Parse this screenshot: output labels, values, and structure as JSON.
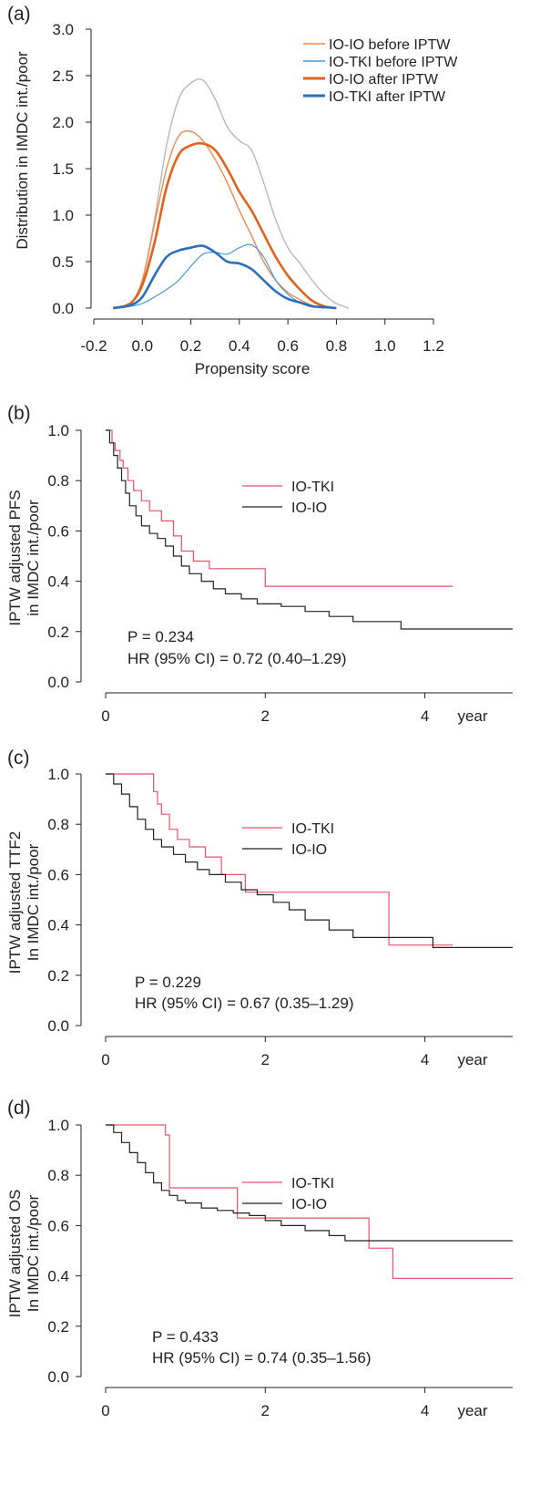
{
  "chart_data": [
    {
      "panel_label": "(a)",
      "type": "line",
      "xlabel": "Propensity score",
      "ylabel": "Distribution in IMDC int./poor",
      "xlim": [
        -0.2,
        1.2
      ],
      "ylim": [
        0.0,
        3.0
      ],
      "x_ticks": [
        "-0.2",
        "0.0",
        "0.2",
        "0.4",
        "0.6",
        "0.8",
        "1.0",
        "1.2"
      ],
      "y_ticks": [
        "0.0",
        "0.5",
        "1.0",
        "1.5",
        "2.0",
        "2.5",
        "3.0"
      ],
      "legend_position": "top-right",
      "colors": {
        "total": "#b8b8b8",
        "io_io_before": "#f08a4b",
        "io_tki_before": "#4a9ad6",
        "io_io_after": "#e3621b",
        "io_tki_after": "#2a6fbd"
      },
      "series": [
        {
          "key": "total",
          "legend": "",
          "x": [
            -0.12,
            -0.05,
            0.0,
            0.05,
            0.1,
            0.15,
            0.2,
            0.25,
            0.3,
            0.35,
            0.4,
            0.45,
            0.5,
            0.55,
            0.6,
            0.65,
            0.7,
            0.75,
            0.8,
            0.85
          ],
          "y": [
            0.0,
            0.05,
            0.3,
            0.95,
            1.75,
            2.25,
            2.42,
            2.45,
            2.25,
            1.95,
            1.8,
            1.7,
            1.35,
            0.95,
            0.65,
            0.48,
            0.3,
            0.15,
            0.05,
            0.0
          ]
        },
        {
          "key": "io_io_before",
          "legend": "IO-IO before IPTW",
          "x": [
            -0.12,
            -0.05,
            0.0,
            0.05,
            0.1,
            0.15,
            0.2,
            0.25,
            0.3,
            0.35,
            0.4,
            0.45,
            0.5,
            0.55,
            0.6,
            0.65,
            0.7,
            0.75
          ],
          "y": [
            0.0,
            0.05,
            0.3,
            0.9,
            1.5,
            1.85,
            1.9,
            1.8,
            1.6,
            1.35,
            1.05,
            0.78,
            0.5,
            0.3,
            0.17,
            0.09,
            0.03,
            0.0
          ]
        },
        {
          "key": "io_tki_before",
          "legend": "IO-TKI before IPTW",
          "x": [
            -0.12,
            -0.05,
            0.0,
            0.05,
            0.1,
            0.15,
            0.2,
            0.25,
            0.3,
            0.35,
            0.4,
            0.45,
            0.5,
            0.55,
            0.6,
            0.65,
            0.7,
            0.75
          ],
          "y": [
            0.0,
            0.02,
            0.05,
            0.12,
            0.2,
            0.3,
            0.45,
            0.58,
            0.6,
            0.58,
            0.65,
            0.68,
            0.55,
            0.3,
            0.15,
            0.06,
            0.02,
            0.0
          ]
        },
        {
          "key": "io_io_after",
          "legend": "IO-IO after IPTW",
          "x": [
            -0.12,
            -0.05,
            0.0,
            0.05,
            0.1,
            0.15,
            0.2,
            0.25,
            0.3,
            0.35,
            0.4,
            0.45,
            0.5,
            0.55,
            0.6,
            0.65,
            0.7,
            0.75,
            0.8
          ],
          "y": [
            0.0,
            0.05,
            0.25,
            0.7,
            1.3,
            1.65,
            1.75,
            1.77,
            1.7,
            1.5,
            1.25,
            1.05,
            0.8,
            0.55,
            0.35,
            0.2,
            0.08,
            0.02,
            0.0
          ]
        },
        {
          "key": "io_tki_after",
          "legend": "IO-TKI after IPTW",
          "x": [
            -0.12,
            -0.05,
            0.0,
            0.05,
            0.1,
            0.15,
            0.2,
            0.25,
            0.3,
            0.35,
            0.4,
            0.45,
            0.5,
            0.55,
            0.6,
            0.65,
            0.7,
            0.75,
            0.8
          ],
          "y": [
            0.0,
            0.03,
            0.12,
            0.35,
            0.55,
            0.62,
            0.65,
            0.67,
            0.6,
            0.5,
            0.48,
            0.42,
            0.3,
            0.18,
            0.1,
            0.06,
            0.02,
            0.01,
            0.0
          ]
        }
      ]
    },
    {
      "panel_label": "(b)",
      "type": "line",
      "ylabel_line1": "IPTW adjusted PFS",
      "ylabel_line2": "in IMDC int./poor",
      "x_ticks": [
        "0",
        "2",
        "4"
      ],
      "x_unit": "year",
      "xlim": [
        0,
        5.1
      ],
      "ylim": [
        0.0,
        1.0
      ],
      "y_ticks": [
        "0.0",
        "0.2",
        "0.4",
        "0.6",
        "0.8",
        "1.0"
      ],
      "legend": [
        "IO-TKI",
        "IO-IO"
      ],
      "p_text": "P = 0.234",
      "hr_text": "HR (95% CI) = 0.72 (0.40–1.29)",
      "colors": {
        "io_tki": "#e8546a",
        "io_io": "#222222"
      },
      "series": [
        {
          "name": "IO-TKI",
          "x": [
            0,
            0.08,
            0.12,
            0.18,
            0.22,
            0.28,
            0.35,
            0.45,
            0.55,
            0.7,
            0.85,
            0.95,
            1.1,
            1.3,
            2.0,
            4.35
          ],
          "y": [
            1.0,
            0.95,
            0.92,
            0.88,
            0.85,
            0.8,
            0.76,
            0.72,
            0.68,
            0.64,
            0.58,
            0.52,
            0.48,
            0.45,
            0.38,
            0.38
          ]
        },
        {
          "name": "IO-IO",
          "x": [
            0,
            0.05,
            0.1,
            0.15,
            0.2,
            0.25,
            0.3,
            0.38,
            0.45,
            0.55,
            0.65,
            0.75,
            0.85,
            0.95,
            1.05,
            1.2,
            1.35,
            1.5,
            1.7,
            1.9,
            2.2,
            2.5,
            2.8,
            3.1,
            3.7,
            5.1
          ],
          "y": [
            1.0,
            0.95,
            0.9,
            0.85,
            0.8,
            0.75,
            0.7,
            0.66,
            0.62,
            0.59,
            0.57,
            0.54,
            0.5,
            0.46,
            0.43,
            0.4,
            0.37,
            0.35,
            0.33,
            0.31,
            0.3,
            0.28,
            0.26,
            0.24,
            0.21,
            0.21
          ]
        }
      ]
    },
    {
      "panel_label": "(c)",
      "type": "line",
      "ylabel_line1": "IPTW adjusted TTF2",
      "ylabel_line2": "In IMDC int./poor",
      "x_ticks": [
        "0",
        "2",
        "4"
      ],
      "x_unit": "year",
      "xlim": [
        0,
        5.1
      ],
      "ylim": [
        0.0,
        1.0
      ],
      "y_ticks": [
        "0.0",
        "0.2",
        "0.4",
        "0.6",
        "0.8",
        "1.0"
      ],
      "legend": [
        "IO-TKI",
        "IO-IO"
      ],
      "p_text": "P = 0.229",
      "hr_text": "HR (95% CI) = 0.67 (0.35–1.29)",
      "colors": {
        "io_tki": "#e8546a",
        "io_io": "#222222"
      },
      "series": [
        {
          "name": "IO-TKI",
          "x": [
            0,
            0.55,
            0.6,
            0.65,
            0.7,
            0.8,
            0.9,
            1.05,
            1.25,
            1.45,
            1.75,
            2.0,
            3.5,
            3.55,
            4.35
          ],
          "y": [
            1.0,
            1.0,
            0.93,
            0.88,
            0.84,
            0.78,
            0.74,
            0.71,
            0.67,
            0.6,
            0.53,
            0.53,
            0.53,
            0.32,
            0.32
          ]
        },
        {
          "name": "IO-IO",
          "x": [
            0,
            0.1,
            0.2,
            0.3,
            0.4,
            0.5,
            0.6,
            0.7,
            0.85,
            1.0,
            1.15,
            1.3,
            1.5,
            1.7,
            1.9,
            2.1,
            2.3,
            2.5,
            2.8,
            3.1,
            3.5,
            4.1,
            5.1
          ],
          "y": [
            1.0,
            0.96,
            0.92,
            0.87,
            0.82,
            0.78,
            0.74,
            0.71,
            0.68,
            0.65,
            0.62,
            0.6,
            0.57,
            0.54,
            0.52,
            0.49,
            0.46,
            0.42,
            0.38,
            0.35,
            0.35,
            0.31,
            0.31
          ]
        }
      ]
    },
    {
      "panel_label": "(d)",
      "type": "line",
      "ylabel_line1": "IPTW adjusted OS",
      "ylabel_line2": "In IMDC int./poor",
      "x_ticks": [
        "0",
        "2",
        "4"
      ],
      "x_unit": "year",
      "xlim": [
        0,
        5.1
      ],
      "ylim": [
        0.0,
        1.0
      ],
      "y_ticks": [
        "0.0",
        "0.2",
        "0.4",
        "0.6",
        "0.8",
        "1.0"
      ],
      "legend": [
        "IO-TKI",
        "IO-IO"
      ],
      "p_text": "P = 0.433",
      "hr_text": "HR (95% CI) = 0.74 (0.35–1.56)",
      "colors": {
        "io_tki": "#e8546a",
        "io_io": "#222222"
      },
      "series": [
        {
          "name": "IO-TKI",
          "x": [
            0,
            0.6,
            0.75,
            0.8,
            1.6,
            1.65,
            2.0,
            3.3,
            3.6,
            5.1
          ],
          "y": [
            1.0,
            1.0,
            0.96,
            0.75,
            0.75,
            0.63,
            0.63,
            0.51,
            0.39,
            0.39
          ]
        },
        {
          "name": "IO-IO",
          "x": [
            0,
            0.1,
            0.2,
            0.3,
            0.4,
            0.5,
            0.6,
            0.7,
            0.8,
            0.9,
            1.0,
            1.2,
            1.4,
            1.6,
            1.8,
            2.0,
            2.2,
            2.5,
            2.8,
            3.0,
            3.2,
            5.1
          ],
          "y": [
            1.0,
            0.97,
            0.93,
            0.89,
            0.85,
            0.81,
            0.77,
            0.74,
            0.72,
            0.7,
            0.69,
            0.67,
            0.66,
            0.65,
            0.64,
            0.62,
            0.6,
            0.58,
            0.56,
            0.54,
            0.54,
            0.54
          ]
        }
      ]
    }
  ]
}
